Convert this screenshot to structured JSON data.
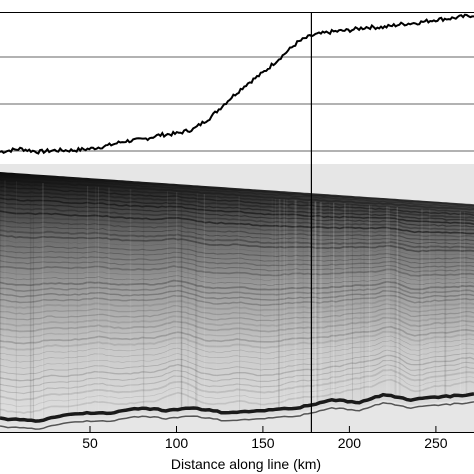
{
  "chart_data": [
    {
      "type": "line",
      "panel": "top",
      "title": "",
      "xlabel": "",
      "ylabel": "",
      "xlim": [
        -2,
        272
      ],
      "ylim": [
        0,
        1
      ],
      "grid": "horizontal",
      "series": [
        {
          "x": [
            -2,
            10,
            20,
            30,
            40,
            50,
            60,
            70,
            80,
            90,
            100,
            110,
            120,
            130,
            140,
            150,
            160,
            170,
            175,
            180,
            190,
            200,
            210,
            220,
            230,
            240,
            250,
            260,
            272
          ],
          "y": [
            0.08,
            0.1,
            0.08,
            0.09,
            0.09,
            0.1,
            0.12,
            0.15,
            0.16,
            0.19,
            0.2,
            0.23,
            0.31,
            0.42,
            0.52,
            0.6,
            0.7,
            0.8,
            0.83,
            0.85,
            0.87,
            0.88,
            0.9,
            0.9,
            0.92,
            0.93,
            0.95,
            0.96,
            0.98
          ]
        }
      ]
    },
    {
      "type": "heatmap",
      "panel": "bottom",
      "title": "",
      "xlabel": "Distance along line (km)",
      "ylabel": "",
      "xlim": [
        -2,
        272
      ],
      "xticks": [
        50,
        100,
        150,
        200,
        250
      ],
      "layer_surface_depth_left": 0.03,
      "layer_surface_depth_right": 0.15,
      "bedrock_depth": [
        {
          "x": -2,
          "d": 0.95
        },
        {
          "x": 20,
          "d": 0.96
        },
        {
          "x": 40,
          "d": 0.93
        },
        {
          "x": 60,
          "d": 0.93
        },
        {
          "x": 80,
          "d": 0.91
        },
        {
          "x": 95,
          "d": 0.92
        },
        {
          "x": 110,
          "d": 0.91
        },
        {
          "x": 130,
          "d": 0.93
        },
        {
          "x": 150,
          "d": 0.92
        },
        {
          "x": 170,
          "d": 0.91
        },
        {
          "x": 190,
          "d": 0.88
        },
        {
          "x": 205,
          "d": 0.89
        },
        {
          "x": 220,
          "d": 0.86
        },
        {
          "x": 235,
          "d": 0.88
        },
        {
          "x": 250,
          "d": 0.87
        },
        {
          "x": 272,
          "d": 0.86
        }
      ]
    }
  ],
  "marker_line_x": 178,
  "colors": {
    "curve": "#000000",
    "grid": "#999999",
    "marker": "#000000",
    "echo_dark": "#1a1a1a",
    "echo_light": "#e4e4e4"
  }
}
